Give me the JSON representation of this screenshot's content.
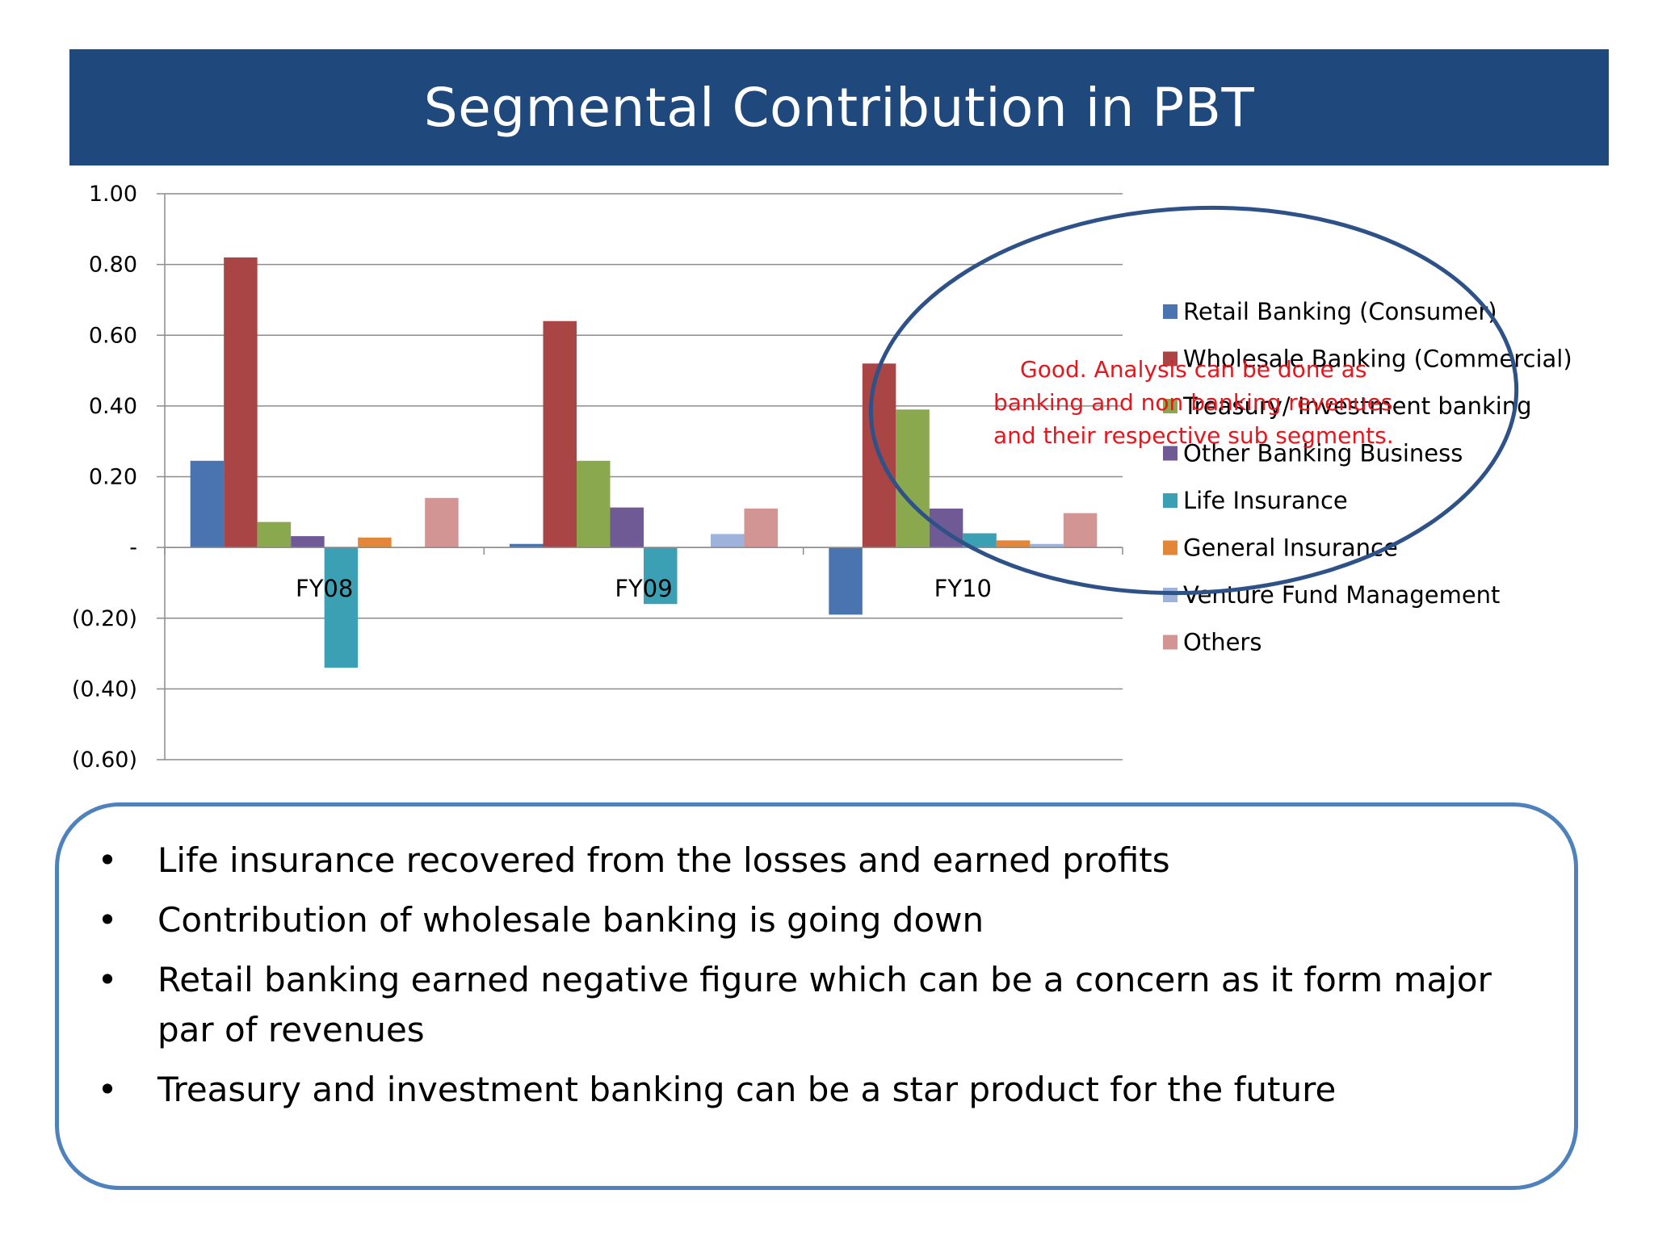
{
  "slide": {
    "title": "Segmental Contribution in PBT"
  },
  "chart_data": {
    "type": "bar",
    "categories": [
      "FY08",
      "FY09",
      "FY10"
    ],
    "series": [
      {
        "name": "Retail Banking (Consumer)",
        "color": "#4a74b0",
        "values": [
          0.245,
          0.01,
          -0.19
        ]
      },
      {
        "name": "Wholesale Banking (Commercial)",
        "color": "#a94645",
        "values": [
          0.82,
          0.64,
          0.52
        ]
      },
      {
        "name": "Treasury/ Investment banking",
        "color": "#8aa84e",
        "values": [
          0.072,
          0.245,
          0.39
        ]
      },
      {
        "name": "Other Banking Business",
        "color": "#6f5a96",
        "values": [
          0.032,
          0.113,
          0.11
        ]
      },
      {
        "name": "Life Insurance",
        "color": "#3ba0b4",
        "values": [
          -0.34,
          -0.16,
          0.04
        ]
      },
      {
        "name": "General Insurance",
        "color": "#e2873a",
        "values": [
          0.028,
          0.0,
          0.02
        ]
      },
      {
        "name": "Venture Fund Management",
        "color": "#9fb2db",
        "values": [
          0.0,
          0.038,
          0.01
        ]
      },
      {
        "name": "Others",
        "color": "#d39594",
        "values": [
          0.14,
          0.11,
          0.097
        ]
      }
    ],
    "y_ticks": [
      {
        "value": 1.0,
        "label": "1.00"
      },
      {
        "value": 0.8,
        "label": "0.80"
      },
      {
        "value": 0.6,
        "label": "0.60"
      },
      {
        "value": 0.4,
        "label": "0.40"
      },
      {
        "value": 0.2,
        "label": "0.20"
      },
      {
        "value": 0.0,
        "label": "-"
      },
      {
        "value": -0.2,
        "label": "(0.20)"
      },
      {
        "value": -0.4,
        "label": "(0.40)"
      },
      {
        "value": -0.6,
        "label": "(0.60)"
      }
    ],
    "ylim": [
      -0.6,
      1.0
    ],
    "grid": true,
    "legend_position": "right",
    "annotation": {
      "lines": [
        "Good. Analysis can be done as",
        "banking and non banking revenues",
        "and their respective sub segments."
      ],
      "color": "#e8151c",
      "ellipse_color": "#2e5287"
    }
  },
  "summary": {
    "bullet_glyph": "•",
    "bullets": [
      "Life insurance recovered from the losses and earned profits",
      "Contribution of wholesale banking is going down",
      "Retail banking earned negative figure which can be a concern as it form major par of revenues",
      "Treasury and investment banking can be a star product for the future"
    ]
  }
}
